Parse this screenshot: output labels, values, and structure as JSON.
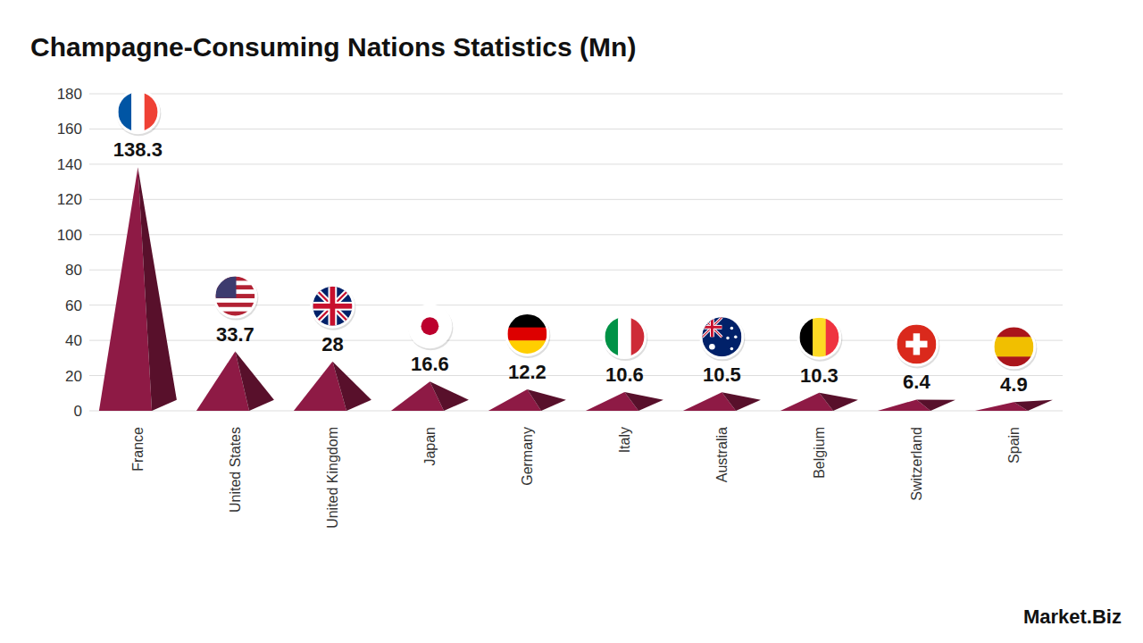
{
  "chart_data": {
    "type": "bar",
    "title": "Champagne-Consuming Nations Statistics (Mn)",
    "categories": [
      "France",
      "United States",
      "United Kingdom",
      "Japan",
      "Germany",
      "Italy",
      "Australia",
      "Belgium",
      "Switzerland",
      "Spain"
    ],
    "values": [
      138.3,
      33.7,
      28,
      16.6,
      12.2,
      10.6,
      10.5,
      10.3,
      6.4,
      4.9
    ],
    "color": "#8e1a45",
    "ylim": [
      0,
      180
    ],
    "yticks": [
      0,
      20,
      40,
      60,
      80,
      100,
      120,
      140,
      160,
      180
    ],
    "grid": true,
    "data_labels": true,
    "annotations": [
      "Market.Biz"
    ]
  }
}
